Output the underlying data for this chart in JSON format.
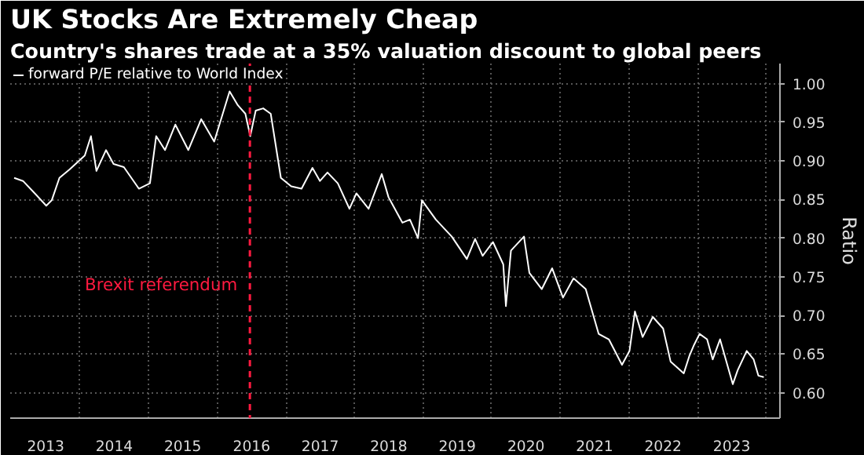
{
  "chart_data": {
    "type": "line",
    "title": "UK Stocks Are Extremely Cheap",
    "subtitle": "Country's shares trade at a 35% valuation discount to global peers",
    "ylabel": "Ratio",
    "x": [
      "2013-01-15",
      "2013-03-03",
      "2013-04-27",
      "2013-07-05",
      "2013-08-03",
      "2013-09-13",
      "2013-11-06",
      "2014-01-26",
      "2014-02-28",
      "2014-03-29",
      "2014-05-19",
      "2014-06-28",
      "2014-08-22",
      "2014-11-10",
      "2015-01-08",
      "2015-02-10",
      "2015-03-29",
      "2015-05-23",
      "2015-07-31",
      "2015-10-08",
      "2015-12-16",
      "2016-03-07",
      "2016-04-20",
      "2016-05-30",
      "2016-06-25",
      "2016-07-24",
      "2016-09-02",
      "2016-10-12",
      "2016-12-05",
      "2017-01-29",
      "2017-03-25",
      "2017-05-22",
      "2017-07-01",
      "2017-08-10",
      "2017-10-04",
      "2017-12-05",
      "2018-01-11",
      "2018-03-17",
      "2018-05-26",
      "2018-07-01",
      "2018-09-13",
      "2018-10-23",
      "2018-12-05",
      "2018-12-26",
      "2019-03-10",
      "2019-06-03",
      "2019-08-22",
      "2019-10-05",
      "2019-11-14",
      "2020-01-08",
      "2020-03-03",
      "2020-03-17",
      "2020-04-13",
      "2020-06-21",
      "2020-07-20",
      "2020-09-24",
      "2020-11-18",
      "2021-01-15",
      "2021-03-12",
      "2021-05-16",
      "2021-07-24",
      "2021-09-16",
      "2021-11-25",
      "2022-01-04",
      "2022-02-02",
      "2022-03-15",
      "2022-05-08",
      "2022-07-02",
      "2022-08-11",
      "2022-10-20",
      "2022-11-18",
      "2022-12-14",
      "2023-01-12",
      "2023-02-21",
      "2023-03-23",
      "2023-05-01",
      "2023-07-08",
      "2023-08-03",
      "2023-09-20",
      "2023-10-27",
      "2023-11-21",
      "2023-12-20"
    ],
    "series": [
      {
        "name": "forward P/E relative to World Index",
        "color": "#ffffff",
        "values": [
          0.878,
          0.874,
          0.86,
          0.842,
          0.849,
          0.878,
          0.889,
          0.907,
          0.932,
          0.887,
          0.914,
          0.896,
          0.892,
          0.864,
          0.871,
          0.932,
          0.914,
          0.947,
          0.914,
          0.954,
          0.925,
          0.99,
          0.972,
          0.961,
          0.932,
          0.965,
          0.968,
          0.961,
          0.878,
          0.867,
          0.864,
          0.891,
          0.874,
          0.885,
          0.871,
          0.838,
          0.858,
          0.838,
          0.883,
          0.853,
          0.82,
          0.824,
          0.8,
          0.849,
          0.824,
          0.802,
          0.773,
          0.799,
          0.777,
          0.795,
          0.766,
          0.712,
          0.784,
          0.802,
          0.755,
          0.734,
          0.761,
          0.723,
          0.748,
          0.734,
          0.676,
          0.669,
          0.636,
          0.654,
          0.705,
          0.672,
          0.698,
          0.683,
          0.64,
          0.625,
          0.647,
          0.662,
          0.676,
          0.669,
          0.643,
          0.669,
          0.611,
          0.629,
          0.654,
          0.643,
          0.622,
          0.62
        ]
      }
    ],
    "xlim": [
      "2012-12-25",
      "2024-03-15"
    ],
    "xticks": [
      {
        "value": "2013-07-02",
        "label": "2013"
      },
      {
        "value": "2014-07-02",
        "label": "2014"
      },
      {
        "value": "2015-07-02",
        "label": "2015"
      },
      {
        "value": "2016-07-02",
        "label": "2016"
      },
      {
        "value": "2017-07-02",
        "label": "2017"
      },
      {
        "value": "2018-07-02",
        "label": "2018"
      },
      {
        "value": "2019-07-02",
        "label": "2019"
      },
      {
        "value": "2020-07-02",
        "label": "2020"
      },
      {
        "value": "2021-07-02",
        "label": "2021"
      },
      {
        "value": "2022-07-02",
        "label": "2022"
      },
      {
        "value": "2023-07-02",
        "label": "2023"
      },
      {
        "value": "2014-01-01",
        "label": null
      },
      {
        "value": "2015-01-01",
        "label": null
      },
      {
        "value": "2016-01-01",
        "label": null
      },
      {
        "value": "2017-01-01",
        "label": null
      },
      {
        "value": "2018-01-01",
        "label": null
      },
      {
        "value": "2019-01-01",
        "label": null
      },
      {
        "value": "2020-01-01",
        "label": null
      },
      {
        "value": "2021-01-01",
        "label": null
      },
      {
        "value": "2022-01-01",
        "label": null
      },
      {
        "value": "2023-01-01",
        "label": null
      },
      {
        "value": "2024-01-01",
        "label": null
      }
    ],
    "ylim": [
      0.567,
      1.026
    ],
    "yticks": [
      {
        "value": 0.6,
        "label": "0.60"
      },
      0.65,
      {
        "value": 0.7,
        "label": "0.70"
      },
      0.75,
      {
        "value": 0.8,
        "label": "0.80"
      },
      0.85,
      {
        "value": 0.9,
        "label": "0.90"
      },
      0.95,
      {
        "value": 1.0,
        "label": "1.00"
      }
    ],
    "ref_lines": [
      {
        "axis": "x",
        "value": "2016-06-23",
        "label": "Brexit referendum",
        "color": "#ff1a40",
        "line_style": "dashed"
      }
    ],
    "grid": true,
    "legend": "top left",
    "line_style": "solid"
  }
}
